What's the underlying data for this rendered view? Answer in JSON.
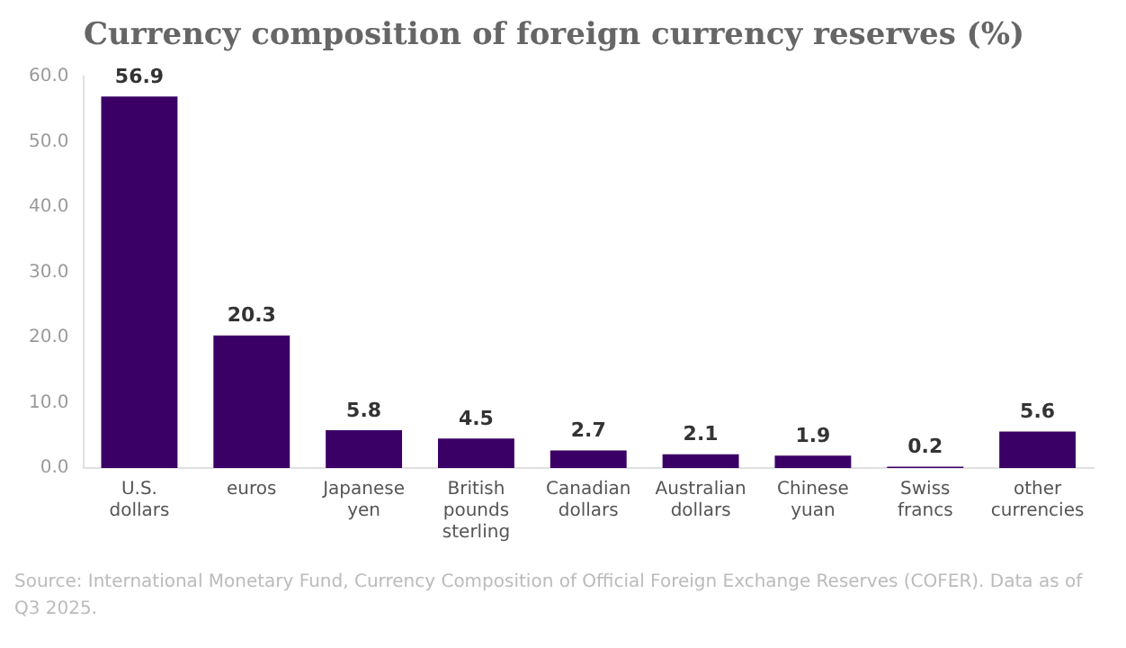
{
  "chart_data": {
    "type": "bar",
    "title": "Currency composition of foreign currency reserves (%)",
    "categories": [
      "U.S. dollars",
      "euros",
      "Japanese yen",
      "British pounds sterling",
      "Canadian dollars",
      "Australian dollars",
      "Chinese yuan",
      "Swiss francs",
      "other currencies"
    ],
    "values": [
      56.9,
      20.3,
      5.8,
      4.5,
      2.7,
      2.1,
      1.9,
      0.2,
      5.6
    ],
    "color": "#3b0066",
    "ylim": [
      0,
      60
    ],
    "yticks": [
      {
        "value": 0,
        "label": "0.0"
      },
      {
        "value": 10,
        "label": "10.0"
      },
      {
        "value": 20,
        "label": "20.0"
      },
      {
        "value": 30,
        "label": "30.0"
      },
      {
        "value": 40,
        "label": "40.0"
      },
      {
        "value": 50,
        "label": "50.0"
      },
      {
        "value": 60,
        "label": "60.0"
      }
    ],
    "grid": false,
    "data_labels": true,
    "annotations": [
      "Source: International Monetary Fund, Currency Composition of Official Foreign Exchange Reserves (COFER). Data as of Q3 2025."
    ]
  }
}
